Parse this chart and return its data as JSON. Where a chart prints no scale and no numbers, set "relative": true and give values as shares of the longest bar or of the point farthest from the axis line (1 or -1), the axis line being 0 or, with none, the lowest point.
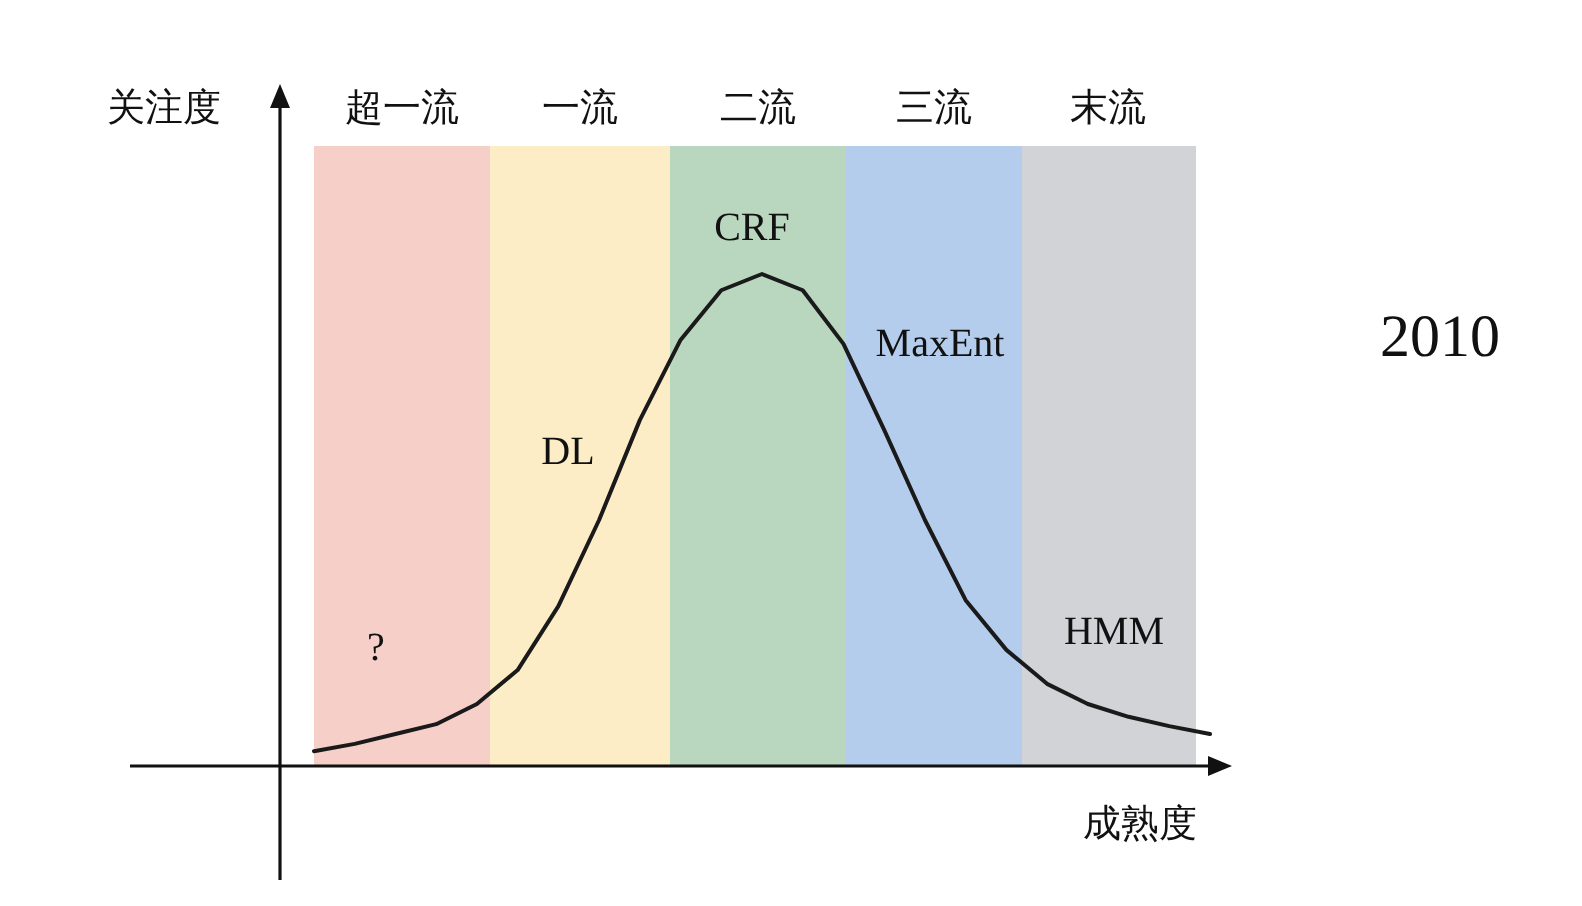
{
  "chart_data": {
    "type": "line",
    "relative": true,
    "xlabel": "成熟度",
    "ylabel": "关注度",
    "categories": [
      null,
      null,
      null,
      null,
      null,
      null,
      null,
      null,
      null,
      null,
      null,
      null,
      null,
      null,
      null,
      null,
      null,
      null,
      null,
      null,
      null,
      null,
      null
    ],
    "series": [
      {
        "color": "#1a1a1a",
        "values": [
          0.03,
          0.045,
          0.065,
          0.085,
          0.126,
          0.195,
          0.325,
          0.5,
          0.703,
          0.866,
          0.967,
          1,
          0.967,
          0.858,
          0.683,
          0.5,
          0.337,
          0.236,
          0.167,
          0.126,
          0.1,
          0.081,
          0.065
        ]
      }
    ],
    "annotations": [
      "超一流",
      "一流",
      "二流",
      "三流",
      "末流",
      "?",
      "DL",
      "CRF",
      "MaxEnt",
      "HMM",
      "2010"
    ]
  }
}
